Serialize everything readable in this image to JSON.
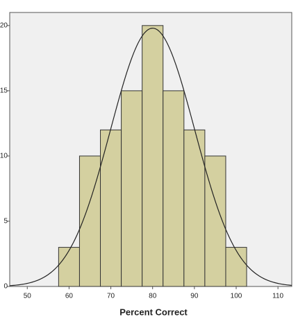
{
  "chart_data": {
    "type": "histogram",
    "x_label": "Percent Correct",
    "bins": [
      57.5,
      62.5,
      67.5,
      72.5,
      77.5,
      82.5,
      87.5,
      92.5,
      97.5,
      102.5
    ],
    "values": [
      3,
      10,
      12,
      15,
      20,
      15,
      12,
      10,
      3
    ],
    "color": "#d4d0a0",
    "normal_curve": true,
    "xlim": [
      45.8,
      113.3
    ],
    "xticks": [
      50,
      60,
      70,
      80,
      90,
      100,
      110
    ],
    "ylim": [
      0,
      21
    ],
    "yticks": [
      0,
      5,
      10,
      15,
      20
    ]
  }
}
